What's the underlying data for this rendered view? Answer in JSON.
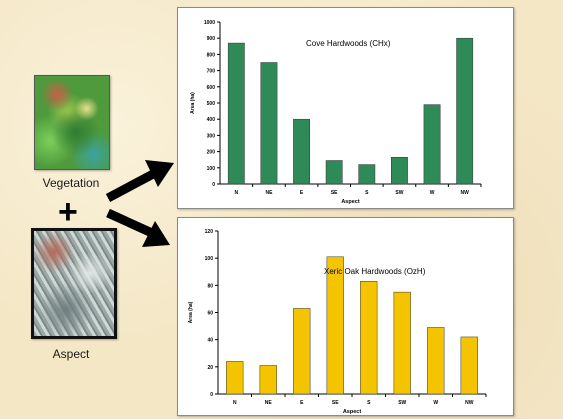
{
  "left": {
    "vegetation_label": "Vegetation",
    "plus": "+",
    "aspect_label": "Aspect"
  },
  "chart_data": [
    {
      "type": "bar",
      "title": "Cove Hardwoods (CHx)",
      "xlabel": "Aspect",
      "ylabel": "Area (ha)",
      "categories": [
        "N",
        "NE",
        "E",
        "SE",
        "S",
        "SW",
        "W",
        "NW"
      ],
      "values": [
        870,
        750,
        400,
        145,
        120,
        165,
        490,
        900
      ],
      "ylim": [
        0,
        1000
      ],
      "yticks": [
        0,
        100,
        200,
        300,
        400,
        500,
        600,
        700,
        800,
        900,
        1000
      ],
      "color": "#2e8b57",
      "grid": false,
      "legend": "none"
    },
    {
      "type": "bar",
      "title": "Xeric Oak Hardwoods (OzH)",
      "xlabel": "Aspect",
      "ylabel": "Area (ha)",
      "categories": [
        "N",
        "NE",
        "E",
        "SE",
        "S",
        "SW",
        "W",
        "NW"
      ],
      "values": [
        24,
        21,
        63,
        101,
        83,
        75,
        49,
        42
      ],
      "ylim": [
        0,
        120
      ],
      "yticks": [
        0,
        20,
        40,
        60,
        80,
        100,
        120
      ],
      "color": "#f5c400",
      "grid": false,
      "legend": "none"
    }
  ]
}
